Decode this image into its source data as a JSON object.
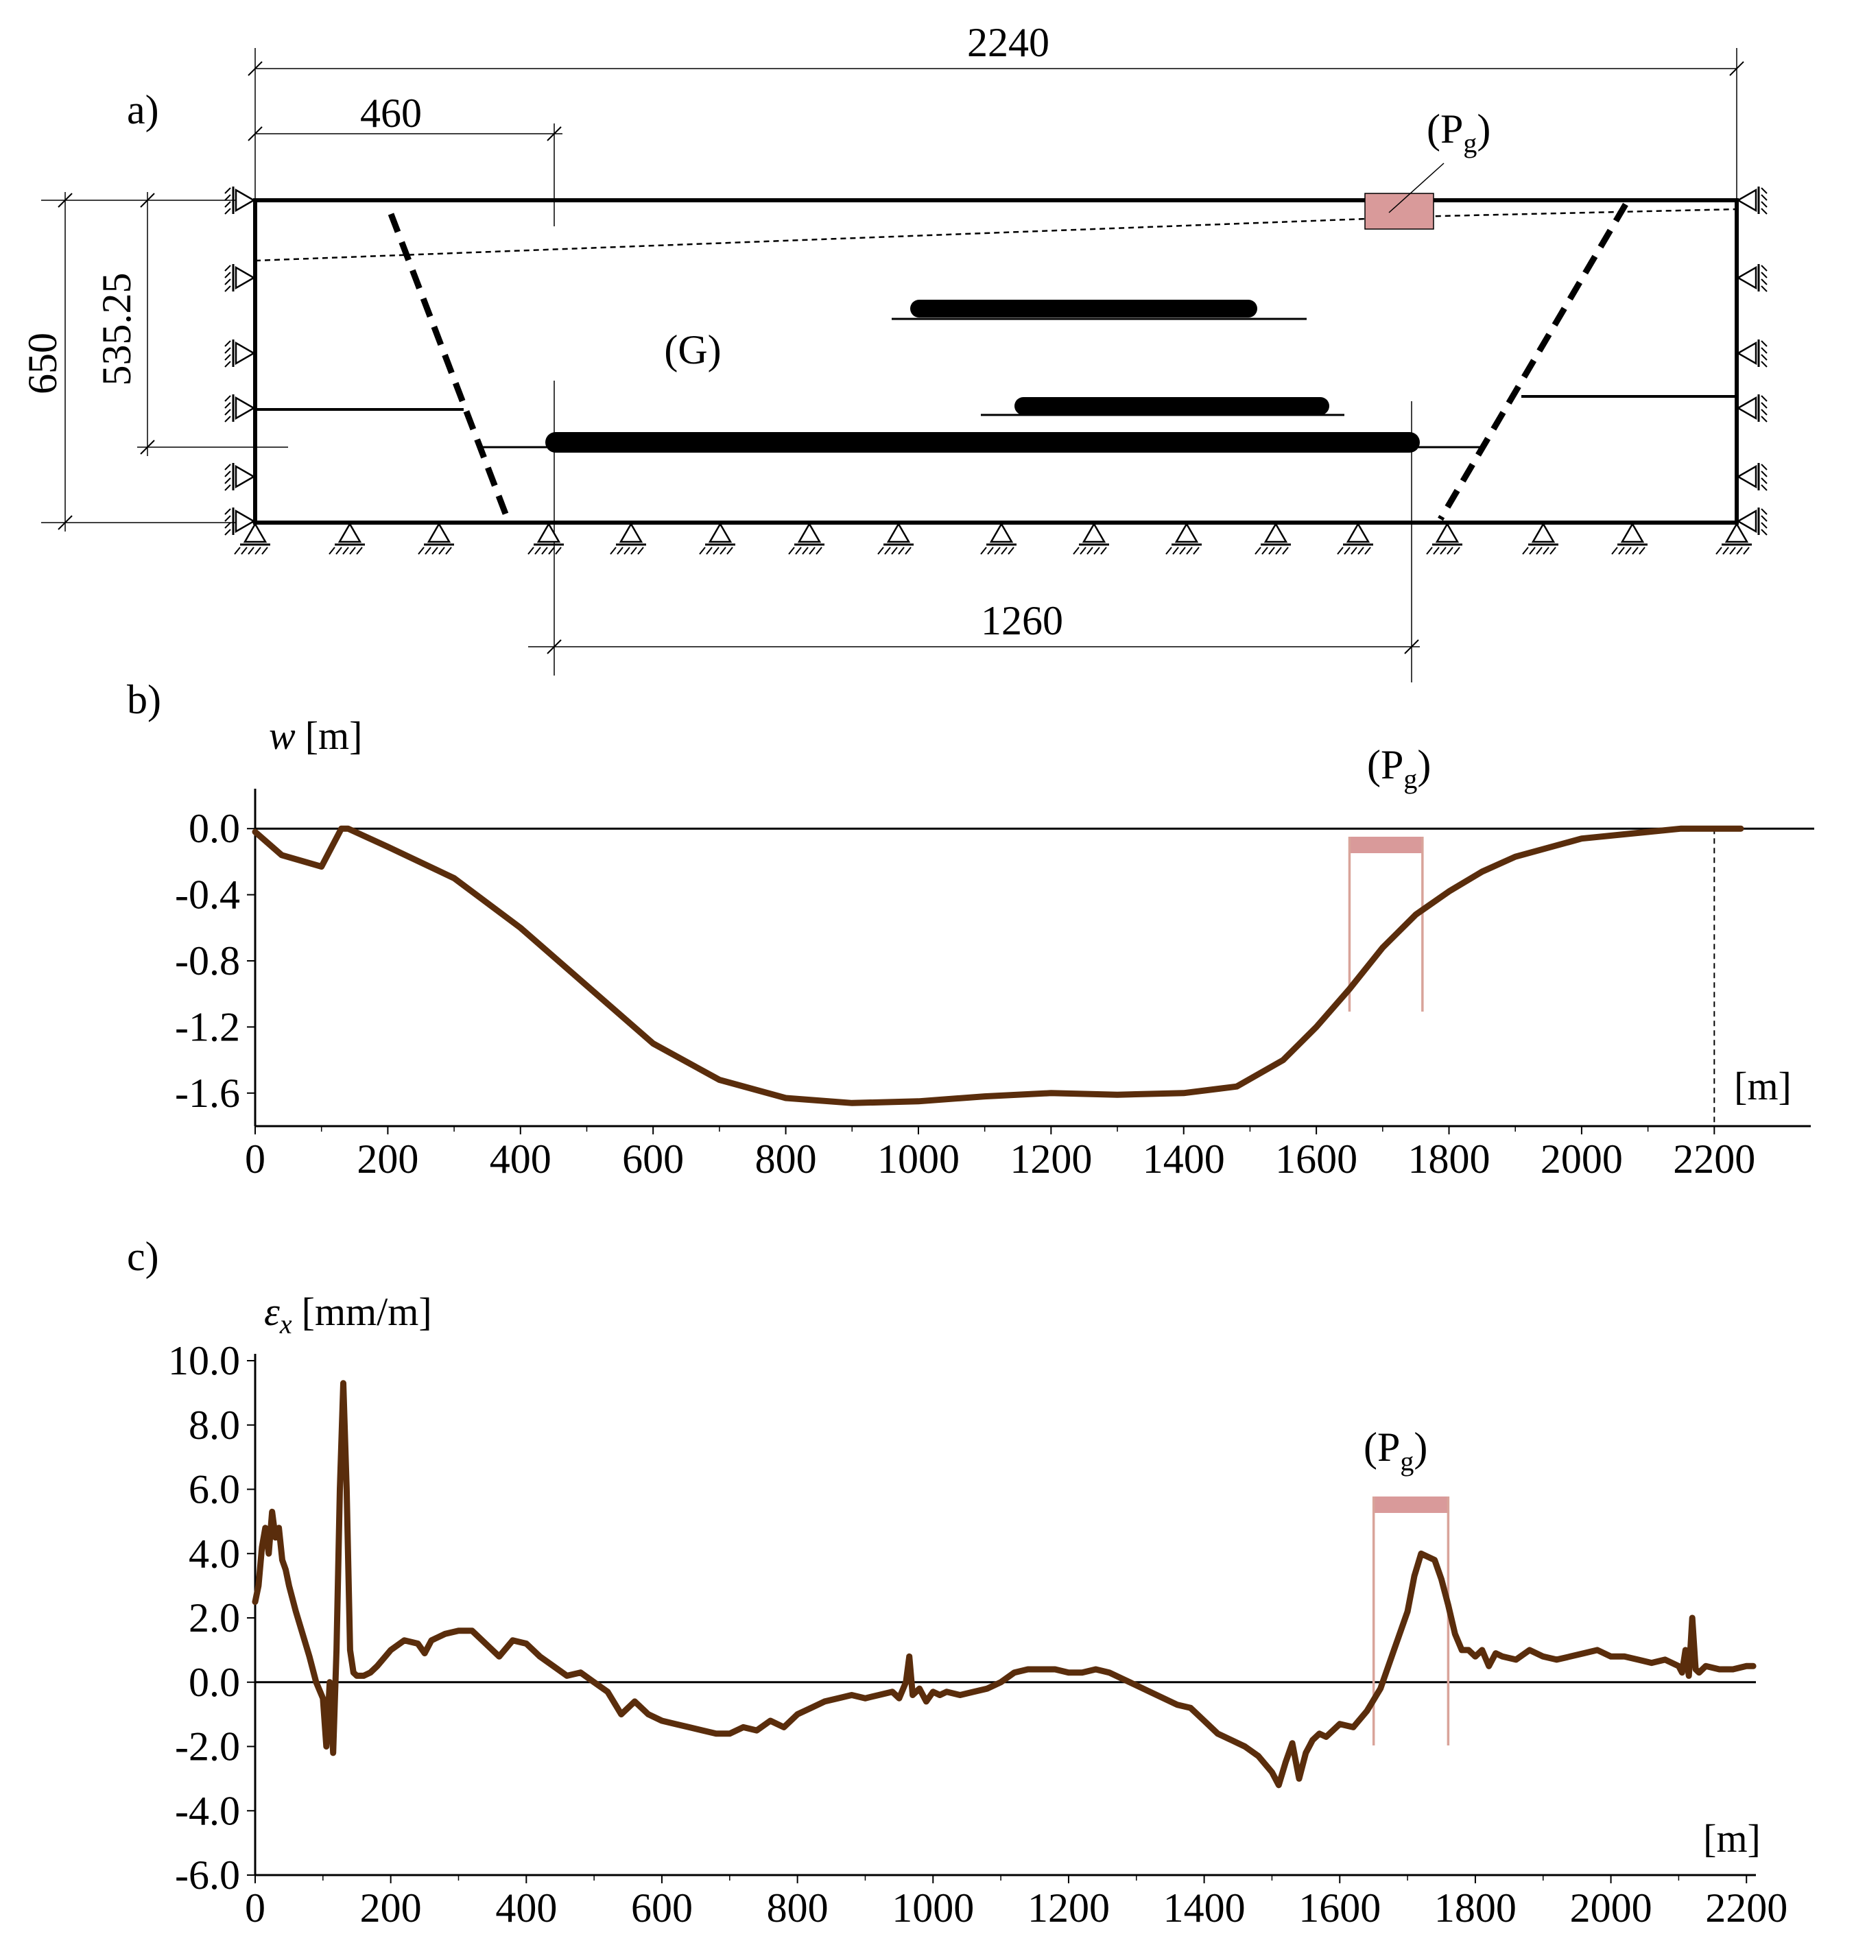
{
  "panel_a": {
    "label": "a)",
    "dims": {
      "total_width": "2240",
      "left_offset": "460",
      "panel_length": "1260",
      "depth": "650",
      "seam_depth": "535.25"
    },
    "goaf_label": "(G)",
    "object_label": {
      "main": "(P",
      "sub": "g",
      "close": ")"
    },
    "object_color": "#d99a9a"
  },
  "chart_data": [
    {
      "type": "line",
      "panel_label": "b)",
      "title": "",
      "ylabel": {
        "var": "w",
        "unit": "[m]"
      },
      "xlabel": "[m]",
      "xlim": [
        0,
        2300
      ],
      "ylim": [
        -1.8,
        0.2
      ],
      "x_ticks": [
        0,
        200,
        400,
        600,
        800,
        1000,
        1200,
        1400,
        1600,
        1800,
        2000,
        2200
      ],
      "y_ticks": [
        0.0,
        -0.4,
        -0.8,
        -1.2,
        -1.6
      ],
      "y_tick_labels": [
        "0.0",
        "-0.4",
        "-0.8",
        "-1.2",
        "-1.6"
      ],
      "annotation": {
        "main": "(P",
        "sub": "g",
        "close": ")",
        "x_start": 1650,
        "x_end": 1760
      },
      "end_marker_x": 2200,
      "series": [
        {
          "name": "w",
          "color": "#5a2d0c",
          "x": [
            0,
            40,
            100,
            130,
            140,
            200,
            300,
            400,
            500,
            600,
            700,
            800,
            900,
            1000,
            1100,
            1200,
            1300,
            1400,
            1480,
            1550,
            1600,
            1650,
            1700,
            1750,
            1800,
            1850,
            1900,
            2000,
            2100,
            2150,
            2240
          ],
          "y": [
            -0.02,
            -0.16,
            -0.23,
            0.0,
            0.0,
            -0.11,
            -0.3,
            -0.6,
            -0.95,
            -1.3,
            -1.52,
            -1.63,
            -1.66,
            -1.65,
            -1.62,
            -1.6,
            -1.61,
            -1.6,
            -1.56,
            -1.4,
            -1.2,
            -0.97,
            -0.72,
            -0.52,
            -0.38,
            -0.26,
            -0.17,
            -0.06,
            -0.02,
            0.0,
            0.0
          ]
        }
      ]
    },
    {
      "type": "line",
      "panel_label": "c)",
      "title": "",
      "ylabel": {
        "var": "ε",
        "sub": "x",
        "unit": "[mm/m]"
      },
      "xlabel": "[m]",
      "xlim": [
        0,
        2220
      ],
      "ylim": [
        -6.0,
        10.0
      ],
      "x_ticks": [
        0,
        200,
        400,
        600,
        800,
        1000,
        1200,
        1400,
        1600,
        1800,
        2000,
        2200
      ],
      "y_ticks": [
        10.0,
        8.0,
        6.0,
        4.0,
        2.0,
        0.0,
        -2.0,
        -4.0,
        -6.0
      ],
      "y_tick_labels": [
        "10.0",
        "8.0",
        "6.0",
        "4.0",
        "2.0",
        "0.0",
        "-2.0",
        "-4.0",
        "-6.0"
      ],
      "annotation": {
        "main": "(P",
        "sub": "g",
        "close": ")",
        "x_start": 1650,
        "x_end": 1760
      },
      "series": [
        {
          "name": "εx",
          "color": "#5a2d0c",
          "x": [
            0,
            5,
            10,
            15,
            20,
            25,
            30,
            35,
            40,
            45,
            50,
            60,
            70,
            80,
            90,
            100,
            105,
            110,
            115,
            120,
            125,
            130,
            135,
            140,
            145,
            150,
            160,
            170,
            180,
            200,
            220,
            240,
            250,
            260,
            280,
            300,
            320,
            340,
            360,
            380,
            400,
            420,
            440,
            460,
            480,
            500,
            520,
            540,
            560,
            580,
            600,
            620,
            640,
            660,
            680,
            700,
            720,
            740,
            760,
            780,
            800,
            820,
            840,
            860,
            880,
            900,
            920,
            940,
            950,
            960,
            965,
            970,
            980,
            990,
            1000,
            1010,
            1020,
            1040,
            1060,
            1080,
            1100,
            1120,
            1140,
            1160,
            1180,
            1200,
            1220,
            1240,
            1260,
            1280,
            1300,
            1320,
            1340,
            1360,
            1380,
            1400,
            1420,
            1440,
            1460,
            1480,
            1500,
            1510,
            1520,
            1530,
            1540,
            1550,
            1560,
            1570,
            1580,
            1600,
            1620,
            1640,
            1660,
            1680,
            1700,
            1710,
            1720,
            1740,
            1750,
            1760,
            1770,
            1780,
            1790,
            1800,
            1810,
            1820,
            1830,
            1840,
            1860,
            1880,
            1900,
            1920,
            1940,
            1960,
            1980,
            2000,
            2020,
            2040,
            2060,
            2080,
            2100,
            2105,
            2110,
            2115,
            2120,
            2125,
            2130,
            2140,
            2160,
            2180,
            2200,
            2210
          ],
          "y": [
            2.5,
            3.0,
            4.2,
            4.8,
            4.0,
            5.3,
            4.5,
            4.8,
            3.8,
            3.5,
            3.0,
            2.2,
            1.5,
            0.8,
            0.0,
            -0.5,
            -2.0,
            0.0,
            -2.2,
            1.0,
            6.0,
            9.3,
            6.0,
            1.0,
            0.3,
            0.2,
            0.2,
            0.3,
            0.5,
            1.0,
            1.3,
            1.2,
            0.9,
            1.3,
            1.5,
            1.6,
            1.6,
            1.2,
            0.8,
            1.3,
            1.2,
            0.8,
            0.5,
            0.2,
            0.3,
            0.0,
            -0.3,
            -1.0,
            -0.6,
            -1.0,
            -1.2,
            -1.3,
            -1.4,
            -1.5,
            -1.6,
            -1.6,
            -1.4,
            -1.5,
            -1.2,
            -1.4,
            -1.0,
            -0.8,
            -0.6,
            -0.5,
            -0.4,
            -0.5,
            -0.4,
            -0.3,
            -0.5,
            0.0,
            0.8,
            -0.4,
            -0.2,
            -0.6,
            -0.3,
            -0.4,
            -0.3,
            -0.4,
            -0.3,
            -0.2,
            0.0,
            0.3,
            0.4,
            0.4,
            0.4,
            0.3,
            0.3,
            0.4,
            0.3,
            0.1,
            -0.1,
            -0.3,
            -0.5,
            -0.7,
            -0.8,
            -1.2,
            -1.6,
            -1.8,
            -2.0,
            -2.3,
            -2.8,
            -3.2,
            -2.5,
            -1.9,
            -3.0,
            -2.2,
            -1.8,
            -1.6,
            -1.7,
            -1.3,
            -1.4,
            -0.9,
            -0.2,
            1.0,
            2.2,
            3.3,
            4.0,
            3.8,
            3.2,
            2.4,
            1.5,
            1.0,
            1.0,
            0.8,
            1.0,
            0.5,
            0.9,
            0.8,
            0.7,
            1.0,
            0.8,
            0.7,
            0.8,
            0.9,
            1.0,
            0.8,
            0.8,
            0.7,
            0.6,
            0.7,
            0.5,
            0.3,
            1.0,
            0.2,
            2.0,
            0.4,
            0.3,
            0.5,
            0.4,
            0.4,
            0.5,
            0.5
          ]
        }
      ]
    }
  ]
}
